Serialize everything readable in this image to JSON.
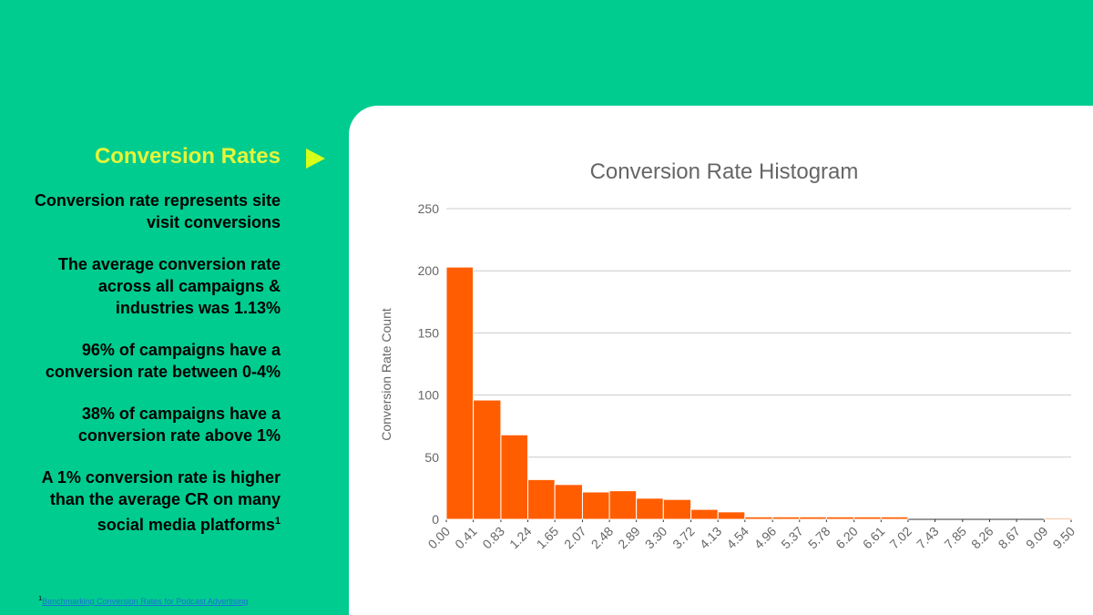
{
  "sidebar": {
    "title": "Conversion Rates",
    "paragraphs": [
      "Conversion rate represents site visit conversions",
      "The average conversion rate across all campaigns & industries was 1.13%",
      "96% of campaigns have a conversion rate between 0-4%",
      "38% of campaigns have a conversion rate above 1%",
      "A 1% conversion rate is higher than the average CR on many social media platforms"
    ],
    "footnote_ref": "1",
    "footnote": {
      "marker": "1",
      "text": "Benchmarking Conversion Rates for Podcast Advertising"
    }
  },
  "chart_data": {
    "type": "histogram",
    "title": "Conversion Rate Histogram",
    "y_label": "Conversion Rate Count",
    "color": "#ff5d00",
    "bins": [
      0,
      0.41,
      0.83,
      1.24,
      1.65,
      2.07,
      2.48,
      2.89,
      3.3,
      3.72,
      4.13,
      4.54,
      4.96,
      5.37,
      5.78,
      6.2,
      6.61,
      7.02,
      7.43,
      7.85,
      8.26,
      8.67,
      9.09,
      9.5
    ],
    "values": [
      203,
      96,
      68,
      32,
      28,
      22,
      23,
      17,
      16,
      8,
      6,
      2,
      2,
      2,
      2,
      2,
      2,
      0,
      0,
      0,
      0,
      0,
      1
    ],
    "xlim": [
      0,
      9.5
    ],
    "xticks": [
      {
        "value": 0,
        "label": "0.00"
      },
      {
        "value": 0.41,
        "label": "0.41"
      },
      {
        "value": 0.83,
        "label": "0.83"
      },
      {
        "value": 1.24,
        "label": "1.24"
      },
      {
        "value": 1.65,
        "label": "1.65"
      },
      {
        "value": 2.07,
        "label": "2.07"
      },
      {
        "value": 2.48,
        "label": "2.48"
      },
      {
        "value": 2.89,
        "label": "2.89"
      },
      {
        "value": 3.3,
        "label": "3.30"
      },
      {
        "value": 3.72,
        "label": "3.72"
      },
      {
        "value": 4.13,
        "label": "4.13"
      },
      {
        "value": 4.54,
        "label": "4.54"
      },
      {
        "value": 4.96,
        "label": "4.96"
      },
      {
        "value": 5.37,
        "label": "5.37"
      },
      {
        "value": 5.78,
        "label": "5.78"
      },
      {
        "value": 6.2,
        "label": "6.20"
      },
      {
        "value": 6.61,
        "label": "6.61"
      },
      {
        "value": 7.02,
        "label": "7.02"
      },
      {
        "value": 7.43,
        "label": "7.43"
      },
      {
        "value": 7.85,
        "label": "7.85"
      },
      {
        "value": 8.26,
        "label": "8.26"
      },
      {
        "value": 8.67,
        "label": "8.67"
      },
      {
        "value": 9.09,
        "label": "9.09"
      },
      {
        "value": 9.5,
        "label": "9.50"
      }
    ],
    "ylim": [
      0,
      250
    ],
    "yticks": [
      0,
      50,
      100,
      150,
      200,
      250
    ],
    "grid": true
  }
}
